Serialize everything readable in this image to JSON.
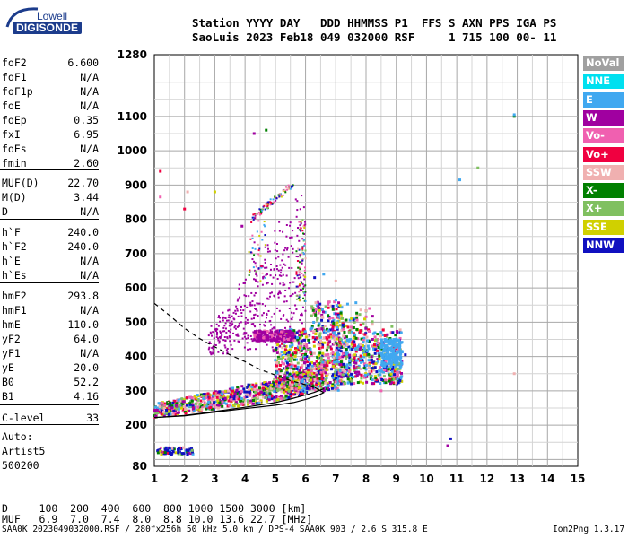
{
  "logo": {
    "brand": "Lowell",
    "name": "DIGISONDE"
  },
  "header": {
    "line1": "Station YYYY DAY   DDD HHMMSS P1  FFS S AXN PPS IGA PS",
    "line2": "SaoLuis 2023 Feb18 049 032000 RSF     1 715 100 00- 11"
  },
  "params": [
    {
      "name": "foF2",
      "value": "6.600"
    },
    {
      "name": "foF1",
      "value": "N/A"
    },
    {
      "name": "foF1p",
      "value": "N/A"
    },
    {
      "name": "foE",
      "value": "N/A"
    },
    {
      "name": "foEp",
      "value": "0.35"
    },
    {
      "name": "fxI",
      "value": "6.95"
    },
    {
      "name": "foEs",
      "value": "N/A"
    },
    {
      "name": "fmin",
      "value": "2.60"
    },
    {
      "name": "MUF(D)",
      "value": "22.70"
    },
    {
      "name": "M(D)",
      "value": "3.44"
    },
    {
      "name": "D",
      "value": "N/A"
    },
    {
      "name": "h`F",
      "value": "240.0"
    },
    {
      "name": "h`F2",
      "value": "240.0"
    },
    {
      "name": "h`E",
      "value": "N/A"
    },
    {
      "name": "h`Es",
      "value": "N/A"
    },
    {
      "name": "hmF2",
      "value": "293.8"
    },
    {
      "name": "hmF1",
      "value": "N/A"
    },
    {
      "name": "hmE",
      "value": "110.0"
    },
    {
      "name": "yF2",
      "value": "64.0"
    },
    {
      "name": "yF1",
      "value": "N/A"
    },
    {
      "name": "yE",
      "value": "20.0"
    },
    {
      "name": "B0",
      "value": "52.2"
    },
    {
      "name": "B1",
      "value": "4.16"
    },
    {
      "name": "C-level",
      "value": "33"
    }
  ],
  "auto": {
    "line1": "Auto:",
    "line2": "Artist5",
    "line3": "500200"
  },
  "legend": [
    {
      "label": "NoVal",
      "color": "#a0a0a0"
    },
    {
      "label": "NNE",
      "color": "#00e0f0"
    },
    {
      "label": "E",
      "color": "#40a8f0"
    },
    {
      "label": "W",
      "color": "#a000a0"
    },
    {
      "label": "Vo-",
      "color": "#f060b0"
    },
    {
      "label": "Vo+",
      "color": "#f00040"
    },
    {
      "label": "SSW",
      "color": "#f0b0b0"
    },
    {
      "label": "X-",
      "color": "#008000"
    },
    {
      "label": "X+",
      "color": "#80c060"
    },
    {
      "label": "SSE",
      "color": "#d0d000"
    },
    {
      "label": "NNW",
      "color": "#1010c0"
    }
  ],
  "muf_table": {
    "line1": "D     100  200  400  600  800 1000 1500 3000 [km]",
    "line2": "MUF   6.9  7.0  7.4  8.0  8.8 10.0 13.6 22.7 [MHz]"
  },
  "footer": {
    "left": "SAA0K_2023049032000.RSF / 280fx256h 50 kHz 5.0 km / DPS-4 SAA0K 903 / 2.6 S 315.8 E",
    "right": "Ion2Png 1.3.17"
  },
  "chart_data": {
    "type": "scatter",
    "x_ticks": [
      "1",
      "2",
      "3",
      "4",
      "5",
      "6",
      "7",
      "8",
      "9",
      "10",
      "11",
      "12",
      "13",
      "14",
      "15"
    ],
    "y_ticks": [
      "80",
      "200",
      "300",
      "400",
      "500",
      "600",
      "700",
      "800",
      "900",
      "1000",
      "1100",
      "1280"
    ],
    "xlim": [
      1,
      15
    ],
    "ylim": [
      80,
      1280
    ],
    "grid": true,
    "series": [
      {
        "name": "O-trace profile",
        "values": [
          [
            1.0,
            222
          ],
          [
            2.0,
            228
          ],
          [
            3.0,
            240
          ],
          [
            4.0,
            252
          ],
          [
            5.0,
            266
          ],
          [
            5.5,
            276
          ],
          [
            6.0,
            288
          ],
          [
            6.3,
            296
          ],
          [
            6.6,
            306
          ]
        ]
      },
      {
        "name": "real-height profile",
        "values": [
          [
            1.0,
            222
          ],
          [
            2.0,
            227
          ],
          [
            3.0,
            238
          ],
          [
            4.0,
            248
          ],
          [
            5.0,
            258
          ],
          [
            5.6,
            266
          ],
          [
            6.0,
            275
          ],
          [
            6.4,
            286
          ],
          [
            6.6,
            295
          ],
          [
            6.3,
            310
          ]
        ]
      },
      {
        "name": "dashed extrapolation",
        "values": [
          [
            1.0,
            555
          ],
          [
            1.5,
            520
          ],
          [
            2.0,
            482
          ],
          [
            2.5,
            452
          ],
          [
            3.0,
            428
          ],
          [
            3.5,
            405
          ],
          [
            4.0,
            385
          ],
          [
            4.5,
            362
          ],
          [
            5.0,
            346
          ],
          [
            5.5,
            330
          ],
          [
            6.0,
            318
          ],
          [
            6.4,
            306
          ]
        ]
      }
    ]
  }
}
